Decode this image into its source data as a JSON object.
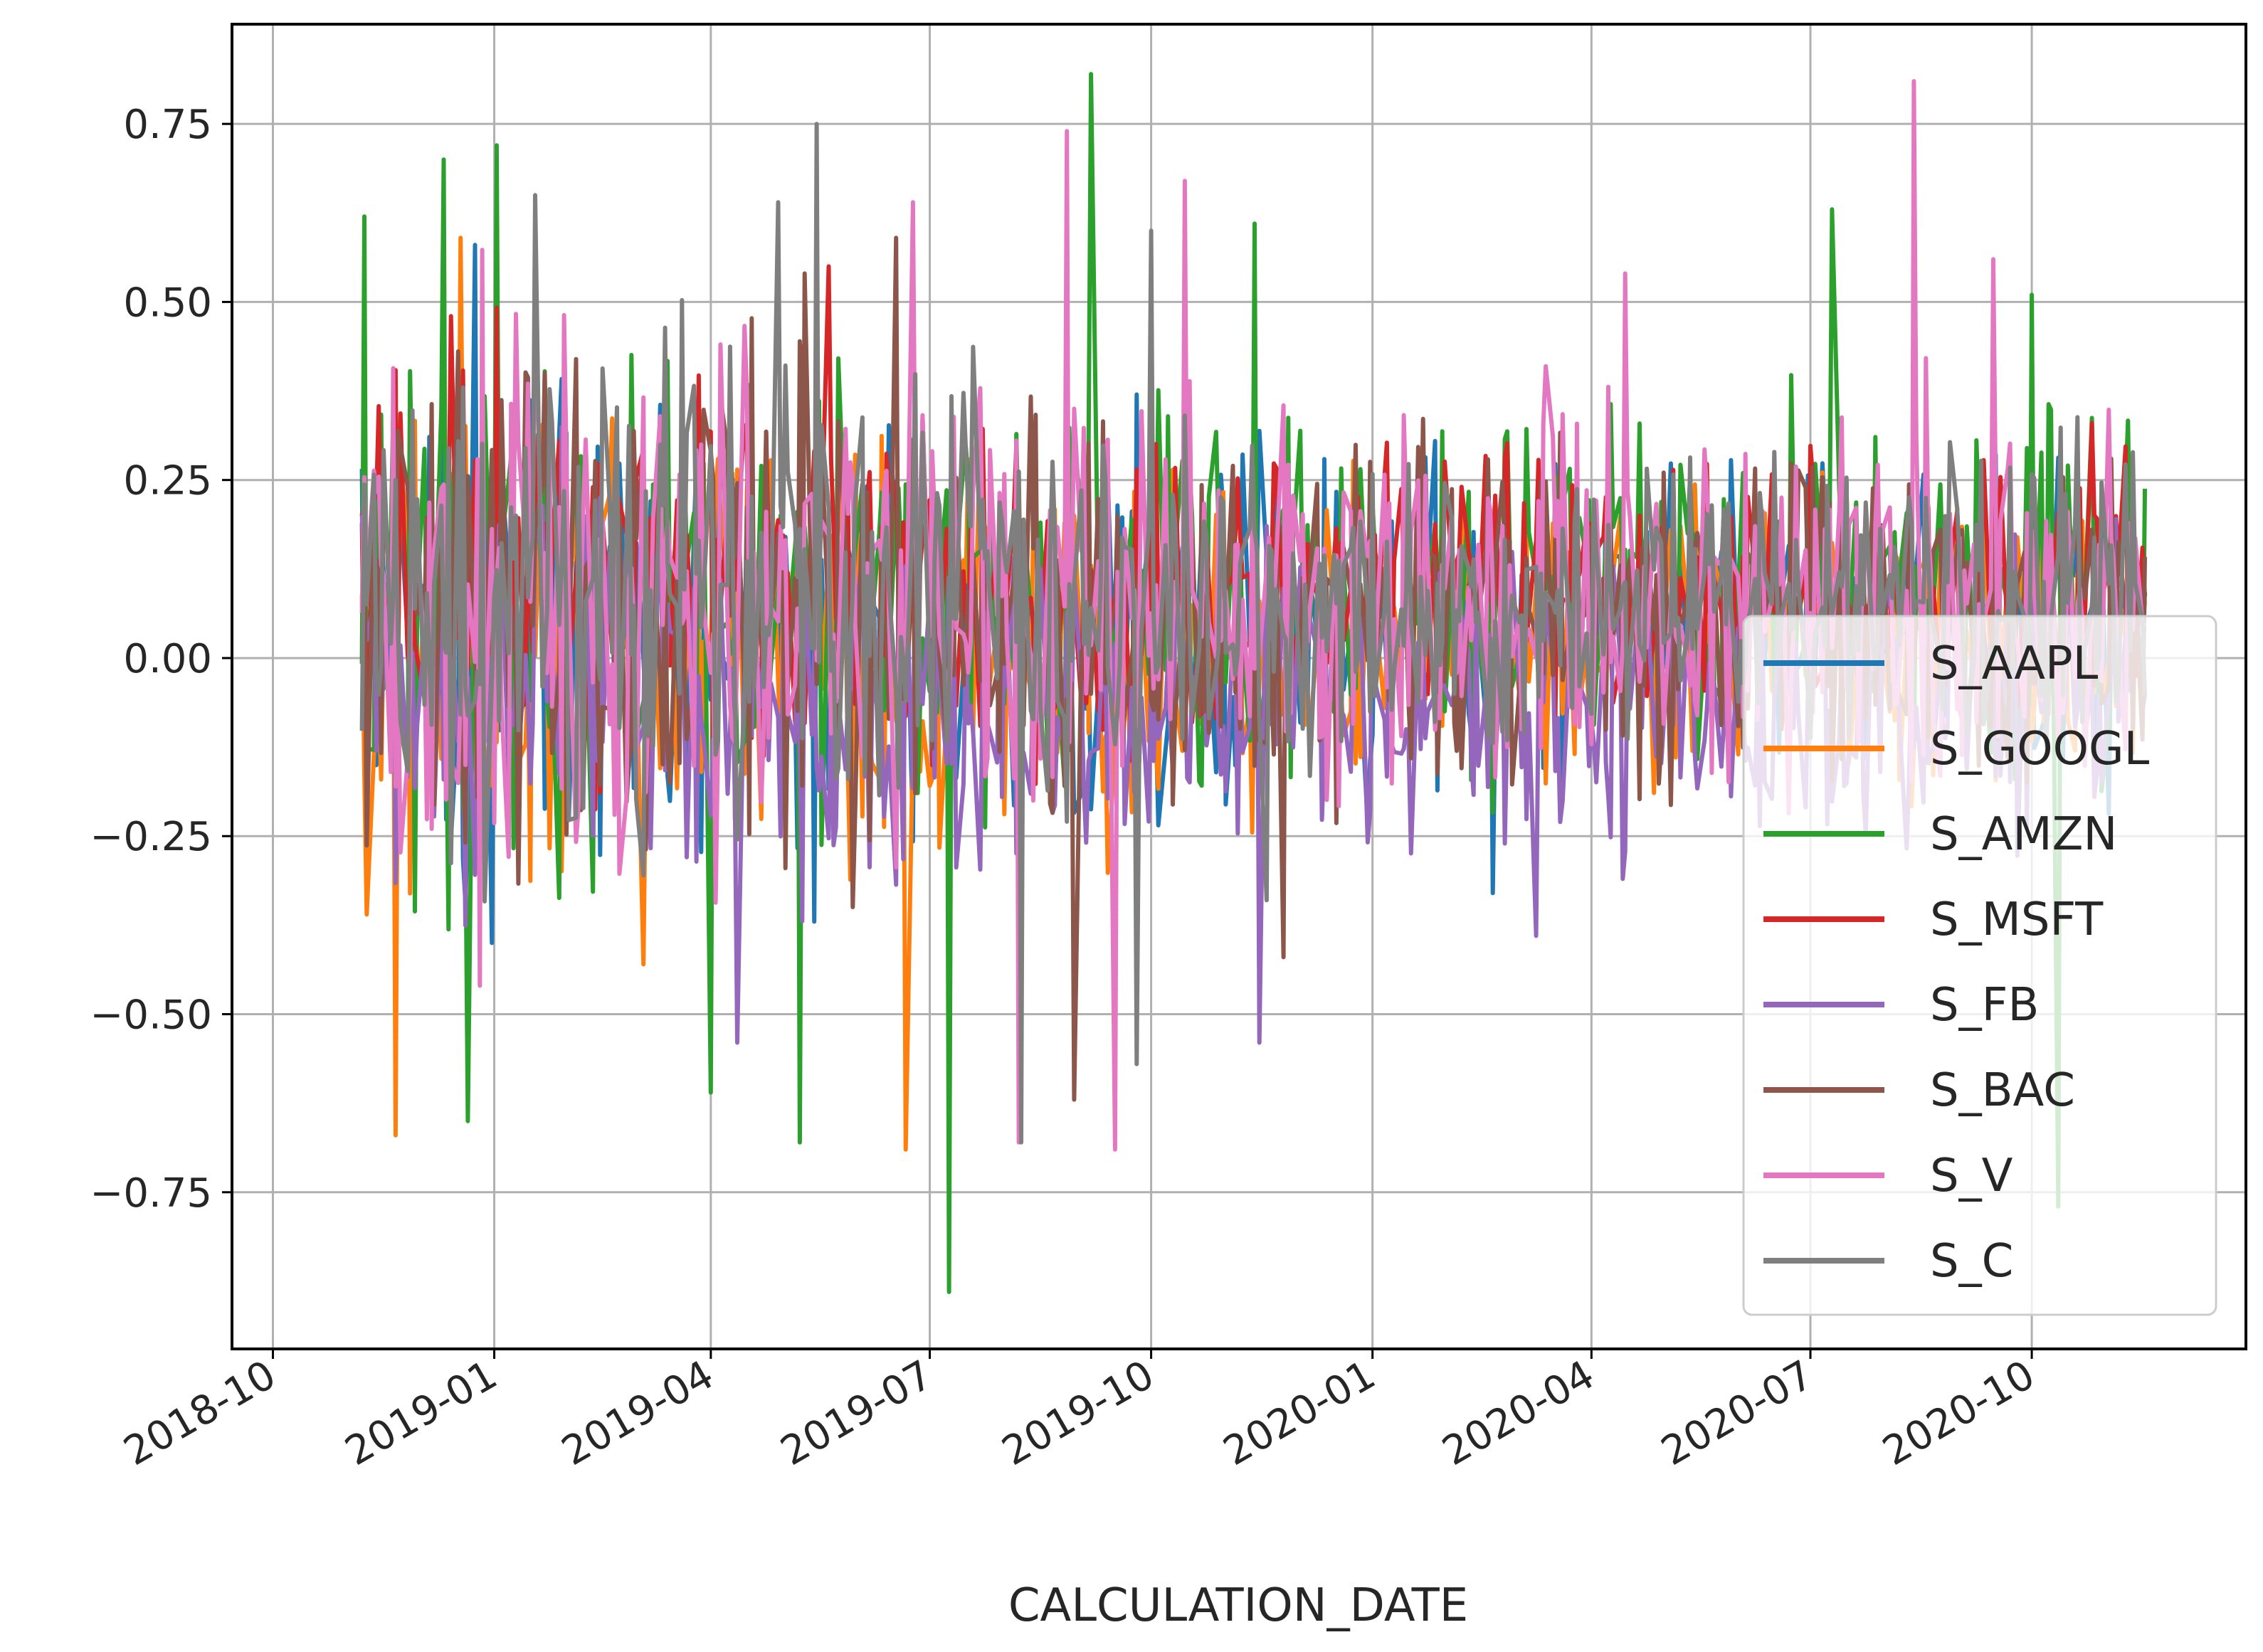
{
  "chart_data": {
    "type": "line",
    "title": "",
    "xlabel": "CALCULATION_DATE",
    "ylabel": "",
    "x_range": [
      "2018-11-07",
      "2020-11-17"
    ],
    "xlim": [
      "2018-09-14",
      "2020-12-29"
    ],
    "ylim": [
      -0.97,
      0.89
    ],
    "x_ticks": [
      "2018-10",
      "2019-01",
      "2019-04",
      "2019-07",
      "2019-10",
      "2020-01",
      "2020-04",
      "2020-07",
      "2020-10"
    ],
    "y_ticks": [
      "0.75",
      "0.50",
      "0.25",
      "0.00",
      "−0.25",
      "−0.50",
      "−0.75"
    ],
    "y_tick_values": [
      0.75,
      0.5,
      0.25,
      0,
      -0.25,
      -0.5,
      -0.75
    ],
    "grid": true,
    "legend_position": "lower-right",
    "series": [
      {
        "name": "S_AAPL",
        "color": "#1f77b4",
        "mean": 0.05,
        "spread_early": 0.28,
        "spread_late": 0.16,
        "spikes": [
          [
            "2018-12-24",
            0.58
          ],
          [
            "2018-12-31",
            -0.4
          ],
          [
            "2019-05-14",
            -0.37
          ],
          [
            "2020-02-20",
            -0.33
          ]
        ]
      },
      {
        "name": "S_GOOGL",
        "color": "#ff7f0e",
        "mean": 0.03,
        "spread_early": 0.27,
        "spread_late": 0.16,
        "spikes": [
          [
            "2018-11-21",
            -0.67
          ],
          [
            "2018-11-09",
            -0.36
          ],
          [
            "2018-12-18",
            0.59
          ],
          [
            "2019-06-21",
            -0.69
          ],
          [
            "2019-03-04",
            -0.43
          ]
        ]
      },
      {
        "name": "S_AMZN",
        "color": "#2ca02c",
        "mean": 0.1,
        "spread_early": 0.32,
        "spread_late": 0.18,
        "spikes": [
          [
            "2019-07-09",
            -0.89
          ],
          [
            "2019-09-06",
            0.82
          ],
          [
            "2018-11-08",
            0.62
          ],
          [
            "2018-12-11",
            0.7
          ],
          [
            "2019-01-02",
            0.72
          ],
          [
            "2019-05-08",
            -0.68
          ],
          [
            "2018-12-21",
            -0.65
          ],
          [
            "2019-04-01",
            -0.61
          ],
          [
            "2019-11-13",
            0.61
          ],
          [
            "2020-07-10",
            0.63
          ],
          [
            "2020-10-12",
            -0.77
          ],
          [
            "2020-10-01",
            0.51
          ]
        ]
      },
      {
        "name": "S_MSFT",
        "color": "#d62728",
        "mean": 0.1,
        "spread_early": 0.25,
        "spread_late": 0.15,
        "spikes": [
          [
            "2018-12-14",
            0.48
          ],
          [
            "2019-05-20",
            0.55
          ],
          [
            "2020-10-26",
            0.33
          ]
        ]
      },
      {
        "name": "S_FB",
        "color": "#9467bd",
        "mean": -0.05,
        "spread_early": 0.24,
        "spread_late": 0.16,
        "spikes": [
          [
            "2019-11-15",
            -0.54
          ],
          [
            "2019-04-12",
            -0.54
          ],
          [
            "2020-03-09",
            -0.39
          ],
          [
            "2020-04-14",
            -0.31
          ]
        ]
      },
      {
        "name": "S_BAC",
        "color": "#8c564b",
        "mean": 0.05,
        "spread_early": 0.3,
        "spread_late": 0.17,
        "spikes": [
          [
            "2019-05-10",
            0.54
          ],
          [
            "2019-06-17",
            0.59
          ],
          [
            "2019-08-30",
            -0.62
          ],
          [
            "2019-11-25",
            -0.42
          ],
          [
            "2019-01-22",
            0.4
          ]
        ]
      },
      {
        "name": "S_V",
        "color": "#e377c2",
        "mean": 0.08,
        "spread_early": 0.32,
        "spread_late": 0.2,
        "spikes": [
          [
            "2020-08-13",
            0.81
          ],
          [
            "2019-08-27",
            0.74
          ],
          [
            "2019-09-16",
            -0.69
          ],
          [
            "2019-10-15",
            0.67
          ],
          [
            "2019-06-24",
            0.64
          ],
          [
            "2020-09-15",
            0.56
          ],
          [
            "2020-04-15",
            0.54
          ],
          [
            "2019-08-07",
            -0.68
          ],
          [
            "2018-12-26",
            -0.46
          ]
        ]
      },
      {
        "name": "S_C",
        "color": "#7f7f7f",
        "mean": 0.08,
        "spread_early": 0.3,
        "spread_late": 0.15,
        "spikes": [
          [
            "2019-05-15",
            0.75
          ],
          [
            "2019-04-29",
            0.64
          ],
          [
            "2019-01-18",
            0.65
          ],
          [
            "2019-10-01",
            0.6
          ],
          [
            "2019-08-08",
            -0.68
          ],
          [
            "2019-09-25",
            -0.57
          ],
          [
            "2019-11-18",
            -0.34
          ]
        ]
      }
    ]
  }
}
